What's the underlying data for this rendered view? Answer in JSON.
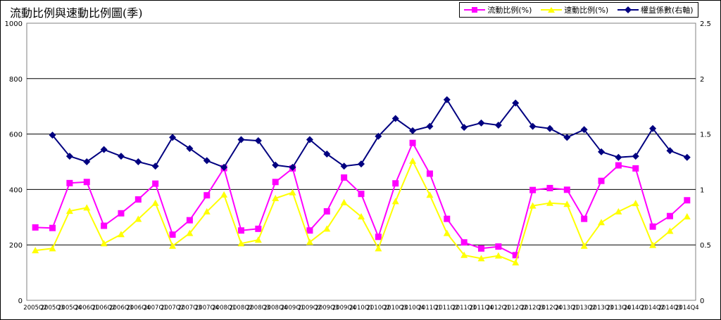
{
  "chart_data": {
    "type": "line",
    "title": "流動比例與速動比例圖(季)",
    "categories": [
      "2005Q2",
      "2005Q3",
      "2005Q4",
      "2006Q1",
      "2006Q2",
      "2006Q3",
      "2006Q4",
      "2007Q1",
      "2007Q2",
      "2007Q3",
      "2007Q4",
      "2008Q1",
      "2008Q2",
      "2008Q3",
      "2008Q4",
      "2009Q1",
      "2009Q2",
      "2009Q3",
      "2009Q4",
      "2010Q1",
      "2010Q2",
      "2010Q3",
      "2010Q4",
      "2011Q1",
      "2011Q2",
      "2011Q3",
      "2011Q4",
      "2012Q1",
      "2012Q2",
      "2012Q3",
      "2012Q4",
      "2013Q1",
      "2013Q2",
      "2013Q3",
      "2013Q4",
      "2014Q1",
      "2014Q2",
      "2014Q3",
      "2014Q4"
    ],
    "ylim": [
      0,
      1000
    ],
    "y2lim": [
      0,
      2.5
    ],
    "yticks": [
      0,
      200,
      400,
      600,
      800,
      1000
    ],
    "y2ticks": [
      "0",
      "0.5",
      "1",
      "1.5",
      "2",
      "2.5"
    ],
    "series": [
      {
        "name": "流動比例(%)",
        "axis": "left",
        "color": "#ff00ff",
        "marker": "square",
        "values": [
          263,
          261,
          423,
          427,
          269,
          314,
          364,
          421,
          237,
          289,
          379,
          477,
          252,
          258,
          427,
          476,
          252,
          321,
          443,
          384,
          229,
          422,
          568,
          457,
          294,
          209,
          187,
          194,
          163,
          398,
          405,
          399,
          294,
          431,
          487,
          476,
          266,
          304,
          361
        ]
      },
      {
        "name": "速動比例(%)",
        "axis": "left",
        "color": "#ffff00",
        "marker": "triangle",
        "values": [
          180,
          187,
          322,
          334,
          205,
          238,
          293,
          351,
          196,
          242,
          320,
          381,
          205,
          218,
          368,
          389,
          210,
          258,
          353,
          302,
          187,
          357,
          503,
          380,
          242,
          163,
          151,
          161,
          136,
          341,
          351,
          347,
          196,
          281,
          320,
          350,
          199,
          250,
          302
        ]
      },
      {
        "name": "權益係數(右軸)",
        "axis": "right",
        "color": "#000080",
        "marker": "diamond",
        "values": [
          null,
          1.49,
          1.3,
          1.25,
          1.36,
          1.3,
          1.25,
          1.21,
          1.47,
          1.37,
          1.26,
          1.2,
          1.45,
          1.44,
          1.22,
          1.2,
          1.45,
          1.32,
          1.21,
          1.23,
          1.48,
          1.64,
          1.53,
          1.57,
          1.81,
          1.56,
          1.6,
          1.58,
          1.78,
          1.57,
          1.55,
          1.47,
          1.54,
          1.34,
          1.29,
          1.3,
          1.55,
          1.35,
          1.29
        ]
      }
    ]
  }
}
